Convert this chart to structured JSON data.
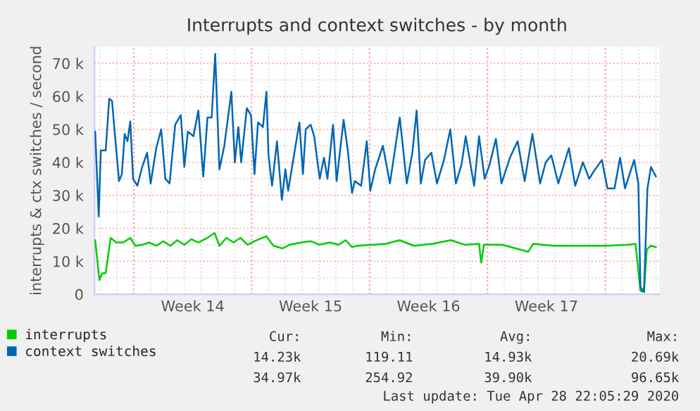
{
  "chart_data": {
    "type": "line",
    "title": "Interrupts and context switches - by month",
    "ylabel": "interrupts & ctx switches / second",
    "series": [
      {
        "name": "interrupts",
        "color": "#00cc00",
        "x": [
          "2020-03-27T17:00",
          "2020-03-27T23:00",
          "2020-03-28T03:00",
          "2020-03-28T08:00",
          "2020-03-28T15:00",
          "2020-03-28T23:00",
          "2020-03-29T09:00",
          "2020-03-29T19:00",
          "2020-03-30T02:00",
          "2020-03-30T12:00",
          "2020-03-30T22:00",
          "2020-03-31T08:00",
          "2020-03-31T18:00",
          "2020-04-01T04:00",
          "2020-04-01T14:00",
          "2020-04-02T00:00",
          "2020-04-02T10:00",
          "2020-04-02T20:00",
          "2020-04-03T09:00",
          "2020-04-03T19:00",
          "2020-04-04T02:00",
          "2020-04-04T12:00",
          "2020-04-04T22:00",
          "2020-04-05T08:00",
          "2020-04-05T18:00",
          "2020-04-06T04:00",
          "2020-04-06T21:00",
          "2020-04-07T07:00",
          "2020-04-07T20:00",
          "2020-04-08T06:00",
          "2020-04-08T23:00",
          "2020-04-09T12:00",
          "2020-04-10T01:00",
          "2020-04-10T15:00",
          "2020-04-11T04:00",
          "2020-04-11T14:00",
          "2020-04-11T23:00",
          "2020-04-12T07:00",
          "2020-04-13T23:00",
          "2020-04-14T19:00",
          "2020-04-15T15:00",
          "2020-04-16T17:00",
          "2020-04-17T20:00",
          "2020-04-18T16:00",
          "2020-04-19T12:00",
          "2020-04-19T15:00",
          "2020-04-19T19:00",
          "2020-04-20T21:00",
          "2020-04-22T10:00",
          "2020-04-22T17:00",
          "2020-04-23T23:00",
          "2020-04-25T15:00",
          "2020-04-27T00:00",
          "2020-04-28T09:00",
          "2020-04-28T19:00",
          "2020-04-29T02:00",
          "2020-04-29T07:00",
          "2020-04-29T11:00",
          "2020-04-29T17:00",
          "2020-04-30T00:00"
        ],
        "values": [
          16400,
          4300,
          6400,
          6400,
          17100,
          15700,
          15700,
          17100,
          14700,
          15000,
          15700,
          14700,
          16100,
          14700,
          16400,
          15000,
          16700,
          15700,
          17100,
          18600,
          14700,
          17100,
          15700,
          17100,
          15000,
          16100,
          17600,
          14700,
          13900,
          15000,
          15700,
          16100,
          15000,
          15700,
          15000,
          16400,
          14300,
          14700,
          15300,
          16400,
          14700,
          15300,
          16400,
          15000,
          15300,
          9600,
          15000,
          15000,
          12900,
          15300,
          14700,
          14700,
          14700,
          15000,
          15300,
          1000,
          700,
          13600,
          14700,
          14300
        ]
      },
      {
        "name": "context switches",
        "color": "#0066b3",
        "x": [
          "2020-03-27T17:00",
          "2020-03-27T22:00",
          "2020-03-28T01:00",
          "2020-03-28T08:00",
          "2020-03-28T13:00",
          "2020-03-28T17:00",
          "2020-03-28T21:00",
          "2020-03-29T03:00",
          "2020-03-29T07:00",
          "2020-03-29T11:00",
          "2020-03-29T15:00",
          "2020-03-29T19:00",
          "2020-03-29T23:00",
          "2020-03-30T05:00",
          "2020-03-30T12:00",
          "2020-03-30T19:00",
          "2020-03-31T00:00",
          "2020-03-31T08:00",
          "2020-03-31T15:00",
          "2020-03-31T21:00",
          "2020-04-01T03:00",
          "2020-04-01T11:00",
          "2020-04-01T19:00",
          "2020-04-02T00:00",
          "2020-04-02T05:00",
          "2020-04-02T13:00",
          "2020-04-02T20:00",
          "2020-04-03T03:00",
          "2020-04-03T09:00",
          "2020-04-03T15:00",
          "2020-04-03T20:00",
          "2020-04-04T02:00",
          "2020-04-04T09:00",
          "2020-04-04T19:00",
          "2020-04-05T00:00",
          "2020-04-05T05:00",
          "2020-04-05T09:00",
          "2020-04-05T17:00",
          "2020-04-05T23:00",
          "2020-04-06T04:00",
          "2020-04-06T09:00",
          "2020-04-06T16:00",
          "2020-04-06T21:00",
          "2020-04-07T00:00",
          "2020-04-07T05:00",
          "2020-04-07T12:00",
          "2020-04-07T19:00",
          "2020-04-08T00:00",
          "2020-04-08T04:00",
          "2020-04-08T09:00",
          "2020-04-08T20:00",
          "2020-04-09T01:00",
          "2020-04-09T05:00",
          "2020-04-09T12:00",
          "2020-04-09T17:00",
          "2020-04-10T01:00",
          "2020-04-10T07:00",
          "2020-04-10T12:00",
          "2020-04-10T20:00",
          "2020-04-11T01:00",
          "2020-04-11T11:00",
          "2020-04-11T17:00",
          "2020-04-11T23:00",
          "2020-04-12T03:00",
          "2020-04-12T12:00",
          "2020-04-12T20:00",
          "2020-04-13T01:00",
          "2020-04-13T08:00",
          "2020-04-13T19:00",
          "2020-04-14T05:00",
          "2020-04-14T19:00",
          "2020-04-15T05:00",
          "2020-04-15T13:00",
          "2020-04-15T19:00",
          "2020-04-16T01:00",
          "2020-04-16T07:00",
          "2020-04-16T16:00",
          "2020-04-17T00:00",
          "2020-04-17T10:00",
          "2020-04-17T19:00",
          "2020-04-18T03:00",
          "2020-04-18T11:00",
          "2020-04-18T17:00",
          "2020-04-19T05:00",
          "2020-04-19T12:00",
          "2020-04-19T20:00",
          "2020-04-20T03:00",
          "2020-04-20T12:00",
          "2020-04-20T20:00",
          "2020-04-21T08:00",
          "2020-04-21T19:00",
          "2020-04-22T05:00",
          "2020-04-22T16:00",
          "2020-04-23T03:00",
          "2020-04-23T11:00",
          "2020-04-23T19:00",
          "2020-04-24T05:00",
          "2020-04-24T20:00",
          "2020-04-25T05:00",
          "2020-04-25T16:00",
          "2020-04-26T01:00",
          "2020-04-26T07:00",
          "2020-04-26T19:00",
          "2020-04-27T03:00",
          "2020-04-27T13:00",
          "2020-04-27T21:00",
          "2020-04-28T04:00",
          "2020-04-28T17:00",
          "2020-04-28T23:00",
          "2020-04-29T02:00",
          "2020-04-29T07:00",
          "2020-04-29T12:00",
          "2020-04-29T17:00",
          "2020-04-30T00:00"
        ],
        "values": [
          49300,
          23600,
          43600,
          43600,
          59300,
          58600,
          48600,
          34300,
          36400,
          48600,
          46400,
          52400,
          35000,
          32900,
          38600,
          42900,
          33600,
          44300,
          50000,
          35000,
          33600,
          51400,
          54300,
          38600,
          49300,
          47900,
          55700,
          35700,
          53600,
          53600,
          72900,
          37900,
          45000,
          61400,
          40000,
          50700,
          40000,
          56400,
          54300,
          36400,
          52100,
          50700,
          61400,
          42100,
          32900,
          46400,
          28600,
          37900,
          31400,
          37900,
          52100,
          36400,
          50000,
          51400,
          47900,
          35000,
          41400,
          35000,
          51400,
          34300,
          52900,
          43600,
          30700,
          34300,
          32900,
          46400,
          31400,
          37900,
          45000,
          33600,
          53600,
          33600,
          42900,
          55700,
          33600,
          40700,
          42900,
          33600,
          40700,
          50000,
          33600,
          39300,
          47900,
          32900,
          47900,
          35000,
          39300,
          47100,
          33600,
          41400,
          46400,
          34300,
          48600,
          33600,
          40000,
          42100,
          33600,
          44300,
          32900,
          40000,
          35000,
          37100,
          40700,
          32100,
          32100,
          41400,
          32100,
          40700,
          33600,
          2100,
          700,
          32100,
          38600,
          35700
        ]
      }
    ],
    "xlim": [
      "2020-03-27T16:00",
      "2020-04-30T05:00"
    ],
    "xticks": [
      {
        "value": "2020-03-28",
        "label": null
      },
      {
        "value": "2020-03-29",
        "label": null
      },
      {
        "value": "2020-03-31",
        "label": null
      },
      {
        "value": "2020-04-01",
        "label": null
      },
      {
        "value": "2020-04-02",
        "label": null
      },
      {
        "value": "2020-04-02T12:00",
        "label": "Week 14"
      },
      {
        "value": "2020-04-03",
        "label": null
      },
      {
        "value": "2020-04-04",
        "label": null
      },
      {
        "value": "2020-04-05",
        "label": null
      },
      {
        "value": "2020-04-07",
        "label": null
      },
      {
        "value": "2020-04-08",
        "label": null
      },
      {
        "value": "2020-04-09",
        "label": null
      },
      {
        "value": "2020-04-09T12:00",
        "label": "Week 15"
      },
      {
        "value": "2020-04-10",
        "label": null
      },
      {
        "value": "2020-04-11",
        "label": null
      },
      {
        "value": "2020-04-12",
        "label": null
      },
      {
        "value": "2020-04-14",
        "label": null
      },
      {
        "value": "2020-04-15",
        "label": null
      },
      {
        "value": "2020-04-16",
        "label": null
      },
      {
        "value": "2020-04-16T12:00",
        "label": "Week 16"
      },
      {
        "value": "2020-04-17",
        "label": null
      },
      {
        "value": "2020-04-18",
        "label": null
      },
      {
        "value": "2020-04-19",
        "label": null
      },
      {
        "value": "2020-04-21",
        "label": null
      },
      {
        "value": "2020-04-22",
        "label": null
      },
      {
        "value": "2020-04-23",
        "label": null
      },
      {
        "value": "2020-04-23T12:00",
        "label": "Week 17"
      },
      {
        "value": "2020-04-24",
        "label": null
      },
      {
        "value": "2020-04-25",
        "label": null
      },
      {
        "value": "2020-04-26",
        "label": null
      },
      {
        "value": "2020-04-28",
        "label": null
      },
      {
        "value": "2020-04-29",
        "label": null
      },
      {
        "value": "2020-04-30",
        "label": null
      }
    ],
    "ylim": [
      0,
      75000
    ],
    "yticks": [
      0,
      {
        "value": 5000,
        "label": null
      },
      {
        "value": 10000,
        "label": "10 k"
      },
      {
        "value": 15000,
        "label": null
      },
      {
        "value": 20000,
        "label": "20 k"
      },
      {
        "value": 25000,
        "label": null
      },
      {
        "value": 30000,
        "label": "30 k"
      },
      {
        "value": 35000,
        "label": null
      },
      {
        "value": 40000,
        "label": "40 k"
      },
      {
        "value": 45000,
        "label": null
      },
      {
        "value": 50000,
        "label": "50 k"
      },
      {
        "value": 55000,
        "label": null
      },
      {
        "value": 60000,
        "label": "60 k"
      },
      {
        "value": 65000,
        "label": null
      },
      {
        "value": 70000,
        "label": "70 k"
      }
    ],
    "ref_lines": [
      {
        "axis": "x",
        "value": "2020-03-30",
        "color": "#ff9999",
        "line_style": "dotted"
      },
      {
        "axis": "x",
        "value": "2020-04-06",
        "color": "#ff9999",
        "line_style": "dotted"
      },
      {
        "axis": "x",
        "value": "2020-04-13",
        "color": "#ff9999",
        "line_style": "dotted"
      },
      {
        "axis": "x",
        "value": "2020-04-20",
        "color": "#ff9999",
        "line_style": "dotted"
      },
      {
        "axis": "x",
        "value": "2020-04-27",
        "color": "#ff9999",
        "line_style": "dotted"
      }
    ],
    "grid": true,
    "legend": "bottom left",
    "marker": "none",
    "line_style": "solid",
    "annotations": [
      "Cur:",
      "Min:",
      "Avg:",
      "Max:",
      "14.23k",
      "119.11",
      "14.93k",
      "20.69k",
      "34.97k",
      "254.92",
      "39.90k",
      "96.65k",
      "Last update: Tue Apr 28 22:05:29 2020"
    ]
  }
}
